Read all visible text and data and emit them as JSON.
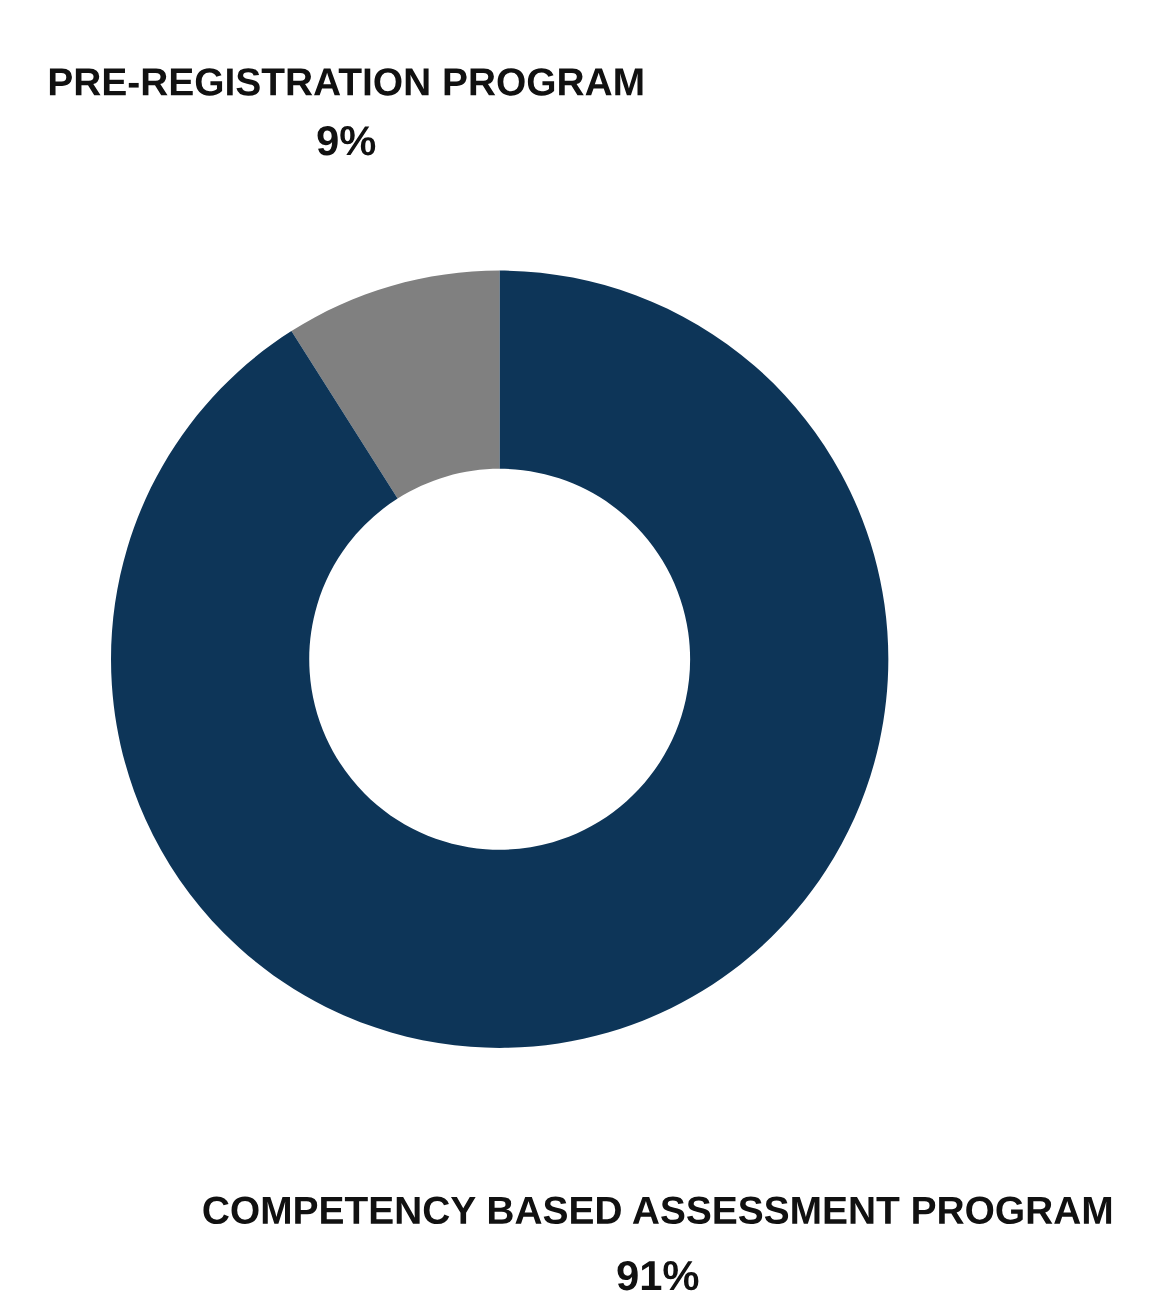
{
  "chart_data": {
    "type": "donut",
    "categories": [
      "PRE-REGISTRATION PROGRAM",
      "COMPETENCY BASED ASSESSMENT PROGRAM"
    ],
    "values": [
      9,
      91
    ],
    "colors": [
      "#808080",
      "#0d3558"
    ],
    "value_labels": [
      "9%",
      "91%"
    ]
  }
}
